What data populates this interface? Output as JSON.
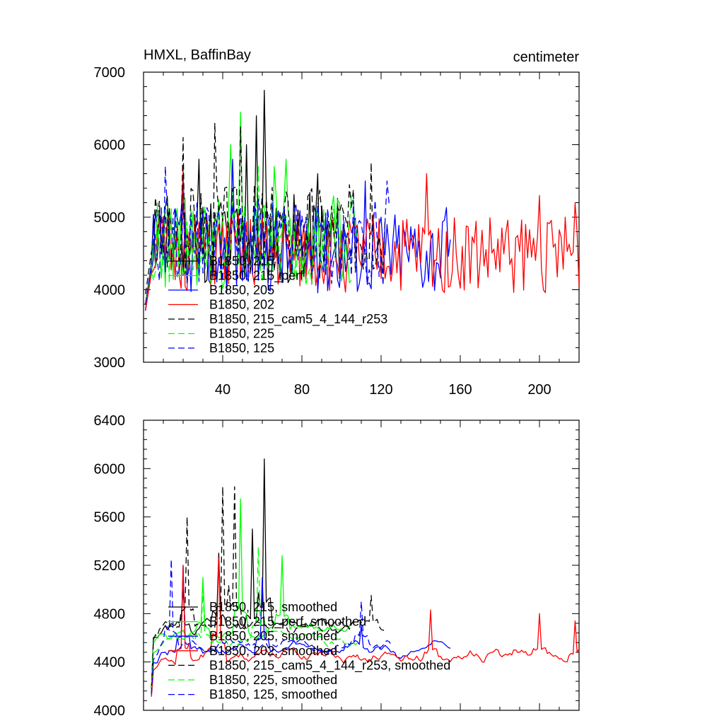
{
  "chart_data": [
    {
      "type": "line",
      "title": "HMXL, BaffinBay",
      "units": "centimeter",
      "xlim": [
        0,
        220
      ],
      "ylim": [
        3000,
        7000
      ],
      "x_ticks": [
        40,
        80,
        120,
        160,
        200
      ],
      "y_ticks": [
        3000,
        4000,
        5000,
        6000,
        7000
      ],
      "x_tick_labels": [
        "40",
        "80",
        "120",
        "160",
        "200"
      ],
      "y_tick_labels": [
        "3000",
        "4000",
        "5000",
        "6000",
        "7000"
      ],
      "legend": "lower-left",
      "series": [
        {
          "name": "B1850, 215",
          "color": "#000000",
          "dash": "solid",
          "start": 1,
          "end": 105,
          "base": 4700,
          "amp": 650,
          "seed": 11,
          "peaks": [
            [
              61,
              6750
            ],
            [
              57,
              6400
            ],
            [
              52,
              6000
            ],
            [
              28,
              5800
            ],
            [
              88,
              5600
            ]
          ]
        },
        {
          "name": "B1850, 215_perf",
          "color": "#00ff00",
          "dash": "solid",
          "start": 1,
          "end": 105,
          "base": 4650,
          "amp": 650,
          "seed": 23,
          "peaks": [
            [
              49,
              6450
            ],
            [
              44,
              6000
            ],
            [
              72,
              5800
            ],
            [
              66,
              5700
            ]
          ]
        },
        {
          "name": "B1850, 205",
          "color": "#0000ff",
          "dash": "solid",
          "start": 1,
          "end": 155,
          "base": 4550,
          "amp": 600,
          "seed": 37,
          "peaks": [
            [
              112,
              5500
            ],
            [
              20,
              5600
            ],
            [
              45,
              5800
            ]
          ]
        },
        {
          "name": "B1850, 202",
          "color": "#ff0000",
          "dash": "solid",
          "start": 1,
          "end": 220,
          "base": 4500,
          "amp": 550,
          "seed": 51,
          "peaks": [
            [
              143,
              5600
            ],
            [
              200,
              5300
            ],
            [
              218,
              5200
            ],
            [
              20,
              5700
            ]
          ]
        },
        {
          "name": "B1850, 215_cam5_4_144_r253",
          "color": "#000000",
          "dash": "dashed",
          "start": 1,
          "end": 122,
          "base": 4850,
          "amp": 650,
          "seed": 67,
          "peaks": [
            [
              49,
              6250
            ],
            [
              36,
              6300
            ],
            [
              20,
              6100
            ],
            [
              115,
              5750
            ]
          ]
        },
        {
          "name": "B1850, 225",
          "color": "#00ff00",
          "dash": "dashed",
          "start": 1,
          "end": 108,
          "base": 4650,
          "amp": 600,
          "seed": 79,
          "peaks": [
            [
              58,
              5700
            ],
            [
              105,
              5300
            ]
          ]
        },
        {
          "name": "B1850, 125",
          "color": "#0000ff",
          "dash": "dashed",
          "start": 1,
          "end": 125,
          "base": 4650,
          "amp": 600,
          "seed": 91,
          "peaks": [
            [
              123,
              5500
            ],
            [
              11,
              5700
            ]
          ]
        }
      ]
    },
    {
      "type": "line",
      "title": "",
      "units": "",
      "xlim": [
        0,
        220
      ],
      "ylim": [
        4000,
        6400
      ],
      "x_ticks": [
        40,
        80,
        120,
        160,
        200
      ],
      "y_ticks": [
        4000,
        4400,
        4800,
        5200,
        5600,
        6000,
        6400
      ],
      "x_tick_labels": [],
      "y_tick_labels": [
        "4000",
        "4400",
        "4800",
        "5200",
        "5600",
        "6000",
        "6400"
      ],
      "legend": "lower-left",
      "series": [
        {
          "name": "B1850, 215, smoothed",
          "color": "#000000",
          "dash": "solid",
          "start": 4,
          "end": 105,
          "base": 4700,
          "amp": 160,
          "seed": 13,
          "peaks": [
            [
              61,
              6080
            ],
            [
              55,
              5500
            ],
            [
              38,
              5300
            ],
            [
              20,
              5000
            ]
          ]
        },
        {
          "name": "B1850, 215_perf, smoothed",
          "color": "#00ff00",
          "dash": "solid",
          "start": 4,
          "end": 105,
          "base": 4650,
          "amp": 160,
          "seed": 29,
          "peaks": [
            [
              49,
              5750
            ],
            [
              70,
              5280
            ],
            [
              30,
              5100
            ]
          ]
        },
        {
          "name": "B1850, 205, smoothed",
          "color": "#0000ff",
          "dash": "solid",
          "start": 4,
          "end": 155,
          "base": 4500,
          "amp": 150,
          "seed": 41,
          "peaks": [
            [
              20,
              5200
            ],
            [
              60,
              5100
            ],
            [
              110,
              4700
            ]
          ]
        },
        {
          "name": "B1850, 202, smoothed",
          "color": "#ff0000",
          "dash": "solid",
          "start": 4,
          "end": 220,
          "base": 4450,
          "amp": 150,
          "seed": 53,
          "peaks": [
            [
              145,
              4830
            ],
            [
              200,
              4800
            ],
            [
              218,
              4740
            ],
            [
              20,
              5200
            ],
            [
              38,
              5260
            ]
          ]
        },
        {
          "name": "B1850, 215_cam5_4_144_r253, smoothed",
          "color": "#000000",
          "dash": "dashed",
          "start": 4,
          "end": 122,
          "base": 4700,
          "amp": 160,
          "seed": 71,
          "peaks": [
            [
              40,
              5850
            ],
            [
              46,
              5850
            ],
            [
              22,
              5600
            ],
            [
              115,
              4950
            ]
          ]
        },
        {
          "name": "B1850, 225, smoothed",
          "color": "#00ff00",
          "dash": "dashed",
          "start": 4,
          "end": 108,
          "base": 4600,
          "amp": 150,
          "seed": 83,
          "peaks": [
            [
              58,
              5350
            ],
            [
              30,
              5000
            ]
          ]
        },
        {
          "name": "B1850, 125, smoothed",
          "color": "#0000ff",
          "dash": "dashed",
          "start": 4,
          "end": 125,
          "base": 4550,
          "amp": 150,
          "seed": 97,
          "peaks": [
            [
              14,
              5250
            ],
            [
              110,
              4900
            ]
          ]
        }
      ]
    }
  ]
}
